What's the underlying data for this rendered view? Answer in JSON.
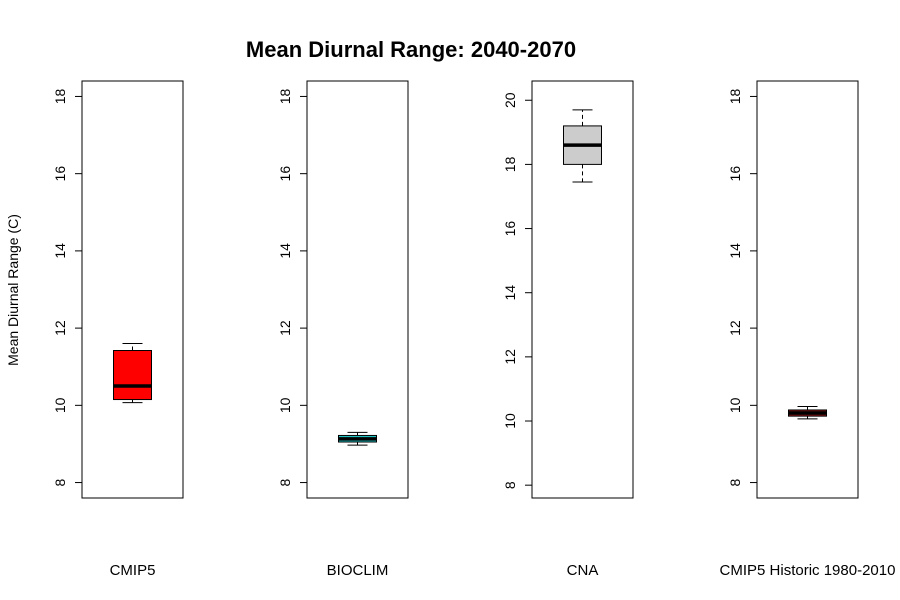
{
  "chart_data": {
    "type": "boxplot",
    "title": "Mean Diurnal Range: 2040-2070",
    "ylabel": "Mean Diurnal Range (C)",
    "panels": [
      {
        "label": "CMIP5",
        "ylim": [
          7.6,
          18.4
        ],
        "yticks": [
          "8",
          "10",
          "12",
          "14",
          "16",
          "18"
        ],
        "box": {
          "min": 10.07,
          "q1": 10.15,
          "median": 10.5,
          "q3": 11.42,
          "max": 11.6
        },
        "color": "#ff0000"
      },
      {
        "label": "BIOCLIM",
        "ylim": [
          7.6,
          18.4
        ],
        "yticks": [
          "8",
          "10",
          "12",
          "14",
          "16",
          "18"
        ],
        "box": {
          "min": 8.97,
          "q1": 9.05,
          "median": 9.13,
          "q3": 9.22,
          "max": 9.3
        },
        "color": "#20c0c0"
      },
      {
        "label": "CNA",
        "ylim": [
          7.6,
          20.6
        ],
        "yticks": [
          "8",
          "10",
          "12",
          "14",
          "16",
          "18",
          "20"
        ],
        "box": {
          "min": 17.45,
          "q1": 18.0,
          "median": 18.6,
          "q3": 19.2,
          "max": 19.7
        },
        "color": "#cccccc"
      },
      {
        "label": "CMIP5 Historic 1980-2010",
        "ylim": [
          7.6,
          18.4
        ],
        "yticks": [
          "8",
          "10",
          "12",
          "14",
          "16",
          "18"
        ],
        "box": {
          "min": 9.65,
          "q1": 9.72,
          "median": 9.8,
          "q3": 9.88,
          "max": 9.97
        },
        "color": "#8b1a1a"
      }
    ]
  }
}
